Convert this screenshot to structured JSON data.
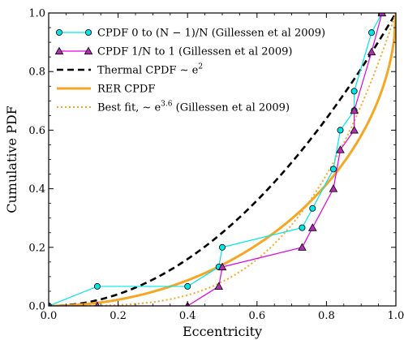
{
  "chart_data": {
    "type": "line",
    "xlabel": "Eccentricity",
    "ylabel": "Cumulative PDF",
    "xlim": [
      0,
      1
    ],
    "ylim": [
      0,
      1
    ],
    "xticks": [
      "0.0",
      "0.2",
      "0.4",
      "0.6",
      "0.8",
      "1.0"
    ],
    "yticks": [
      "0.0",
      "0.2",
      "0.4",
      "0.6",
      "0.8",
      "1.0"
    ],
    "grid": false,
    "legend_position": "top-left",
    "series": [
      {
        "name": "cpdf-0",
        "legend_parts": [
          "CPDF 0 to ",
          "(N − 1)/N",
          " (Gillessen et al 2009)"
        ],
        "color": "#00e5e5",
        "marker": "circle",
        "marker_face": "#00e5e5",
        "x": [
          0.0,
          0.14,
          0.4,
          0.49,
          0.5,
          0.73,
          0.76,
          0.82,
          0.84,
          0.88,
          0.88,
          0.93,
          0.96
        ],
        "y": [
          0.0,
          0.0667,
          0.0667,
          0.133,
          0.2,
          0.267,
          0.333,
          0.467,
          0.6,
          0.667,
          0.733,
          0.933,
          1.0
        ]
      },
      {
        "name": "cpdf-1",
        "legend_parts": [
          "CPDF ",
          "1/N",
          " to 1 (Gillessen et al 2009)"
        ],
        "color": "#e000e0",
        "marker": "triangle",
        "marker_face": "#b030b0",
        "x": [
          0.0,
          0.14,
          0.4,
          0.49,
          0.5,
          0.73,
          0.76,
          0.82,
          0.84,
          0.88,
          0.88,
          0.93,
          0.96
        ],
        "y": [
          0.0,
          0.0,
          0.0,
          0.0667,
          0.133,
          0.2,
          0.267,
          0.4,
          0.533,
          0.6,
          0.667,
          0.867,
          1.0
        ]
      },
      {
        "name": "thermal",
        "legend_parts": [
          "Thermal CPDF ∼ e",
          "2",
          ""
        ],
        "color": "#000000",
        "style": "dashed",
        "function": "e^2"
      },
      {
        "name": "rer",
        "legend_parts": [
          "RER CPDF",
          "",
          ""
        ],
        "color": "#f5a623",
        "style": "solid",
        "function": "rer"
      },
      {
        "name": "best-fit",
        "legend_parts": [
          "Best fit, ∼ e",
          "3.6",
          " (Gillessen et al 2009)"
        ],
        "color": "#f5a623",
        "style": "dotted",
        "function": "e^3.6"
      }
    ]
  }
}
